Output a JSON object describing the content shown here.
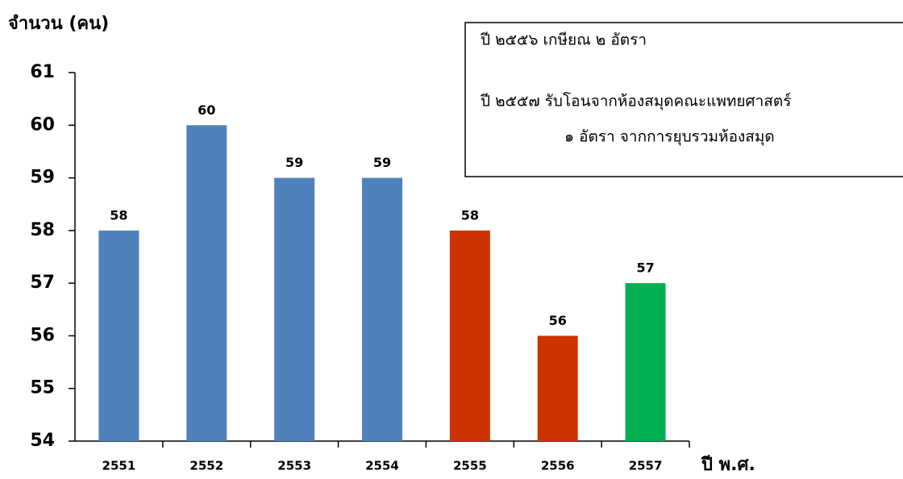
{
  "chart_data": {
    "type": "bar",
    "y_axis_label": "จำนวน (คน)",
    "x_axis_label": "ปี พ.ศ.",
    "annotations": [
      "ปี ๒๕๕๖  เกษียณ ๒ อัตรา",
      "ปี ๒๕๕๗  รับโอนจากห้องสมุดคณะแพทยศาสตร์",
      "๑ อัตรา จากการยุบรวมห้องสมุด"
    ],
    "categories": [
      "2551",
      "2552",
      "2553",
      "2554",
      "2555",
      "2556",
      "2557"
    ],
    "values": [
      58,
      60,
      59,
      59,
      58,
      56,
      57
    ],
    "colors": [
      "#4f81bd",
      "#4f81bd",
      "#4f81bd",
      "#4f81bd",
      "#cc3300",
      "#cc3300",
      "#00b050"
    ],
    "ylim": [
      54,
      61
    ],
    "yticks": [
      54,
      55,
      56,
      57,
      58,
      59,
      60,
      61
    ],
    "grid": false
  }
}
